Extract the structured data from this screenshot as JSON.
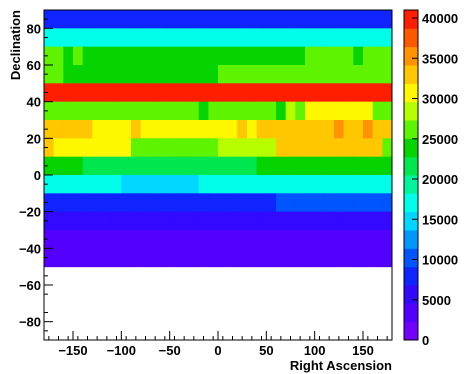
{
  "chart_data": {
    "type": "heatmap",
    "title": "",
    "xlabel": "Right Ascension",
    "ylabel": "Declination",
    "xlim": [
      -180,
      180
    ],
    "ylim": [
      -90,
      90
    ],
    "x_ticks": [
      -150,
      -100,
      -50,
      0,
      50,
      100,
      150
    ],
    "y_ticks": [
      -80,
      -60,
      -40,
      -20,
      0,
      20,
      40,
      60,
      80
    ],
    "z_range": [
      0,
      41000
    ],
    "colorbar_ticks": [
      0,
      5000,
      10000,
      15000,
      20000,
      25000,
      30000,
      35000,
      40000
    ],
    "grid": false,
    "bins_x": 36,
    "rows": [
      {
        "dec": [
          80,
          90
        ],
        "values": [
          9000,
          9000,
          9000,
          9000,
          9000,
          9000,
          9000,
          9000,
          9000,
          9000,
          9000,
          9000,
          9000,
          9000,
          9000,
          9000,
          9000,
          9000,
          9000,
          9000,
          9000,
          9000,
          9000,
          9000,
          9000,
          9000,
          9000,
          9000,
          9000,
          9000,
          9000,
          9000,
          9000,
          9000,
          9000,
          9000
        ]
      },
      {
        "dec": [
          70,
          80
        ],
        "values": [
          16000,
          16000,
          16000,
          16000,
          16000,
          16000,
          16000,
          16000,
          16000,
          16000,
          16000,
          16000,
          16000,
          16000,
          16000,
          16000,
          16000,
          16000,
          16000,
          16000,
          16000,
          16000,
          16000,
          16000,
          16000,
          16000,
          16000,
          16000,
          16000,
          16000,
          16000,
          16000,
          16000,
          16000,
          16000,
          16000
        ]
      },
      {
        "dec": [
          60,
          70
        ],
        "values": [
          25500,
          25500,
          23000,
          25500,
          23000,
          23000,
          23000,
          23000,
          23000,
          23000,
          23000,
          23000,
          23000,
          23000,
          23000,
          23000,
          23000,
          23000,
          23000,
          23000,
          23000,
          23000,
          23000,
          23000,
          23000,
          23000,
          23000,
          25500,
          25500,
          25500,
          25500,
          25500,
          23000,
          25500,
          25500,
          25500
        ]
      },
      {
        "dec": [
          50,
          60
        ],
        "values": [
          25500,
          25500,
          23000,
          23000,
          23000,
          23000,
          23000,
          23000,
          23000,
          23000,
          23000,
          23000,
          23000,
          23000,
          23000,
          23000,
          23000,
          23000,
          25500,
          25500,
          25500,
          25500,
          25500,
          25500,
          25500,
          25500,
          25500,
          25500,
          25500,
          25500,
          25500,
          25500,
          25500,
          25500,
          25500,
          25500
        ]
      },
      {
        "dec": [
          40,
          50
        ],
        "values": [
          39000,
          41000,
          41000,
          41000,
          41000,
          41000,
          41000,
          41000,
          41000,
          41000,
          41000,
          41000,
          41000,
          41000,
          41000,
          41000,
          41000,
          41000,
          41000,
          41000,
          41000,
          39500,
          39500,
          39500,
          39500,
          39500,
          39500,
          39500,
          39500,
          39500,
          39500,
          39500,
          39500,
          39500,
          39500,
          39500
        ]
      },
      {
        "dec": [
          30,
          40
        ],
        "values": [
          27000,
          27000,
          27000,
          27000,
          27000,
          27000,
          27000,
          27000,
          27000,
          27000,
          27000,
          27000,
          27000,
          27000,
          27000,
          27000,
          25000,
          27000,
          27000,
          27000,
          27000,
          27000,
          27000,
          27000,
          25000,
          29500,
          27000,
          30500,
          30500,
          30500,
          30500,
          30500,
          30500,
          30500,
          27000,
          27000
        ]
      },
      {
        "dec": [
          20,
          30
        ],
        "values": [
          33500,
          33500,
          33500,
          33500,
          33500,
          30500,
          30500,
          30500,
          30500,
          34000,
          30500,
          30500,
          30500,
          30500,
          30500,
          30500,
          30500,
          30500,
          30500,
          30500,
          34000,
          30500,
          33500,
          33500,
          33500,
          33500,
          33500,
          33500,
          33500,
          33500,
          35500,
          33500,
          33500,
          35500,
          33500,
          33500
        ]
      },
      {
        "dec": [
          10,
          20
        ],
        "values": [
          34000,
          30500,
          30500,
          30500,
          30500,
          30500,
          30500,
          30500,
          30500,
          27000,
          27000,
          27000,
          27000,
          27000,
          27000,
          27000,
          27000,
          27000,
          28000,
          28000,
          28000,
          28000,
          28000,
          28000,
          34000,
          34000,
          34000,
          34000,
          34000,
          34000,
          34000,
          34000,
          34000,
          34000,
          34000,
          27000
        ]
      },
      {
        "dec": [
          0,
          10
        ],
        "values": [
          23500,
          23500,
          23500,
          23500,
          21500,
          21500,
          21500,
          21500,
          21500,
          21500,
          21500,
          21500,
          21500,
          21500,
          21500,
          21500,
          21500,
          21500,
          21500,
          21500,
          21500,
          21500,
          23500,
          23500,
          23500,
          23500,
          23500,
          23500,
          23500,
          23500,
          23500,
          23500,
          23500,
          23500,
          23500,
          23500
        ]
      },
      {
        "dec": [
          -10,
          0
        ],
        "values": [
          18000,
          18000,
          18000,
          18000,
          18000,
          18000,
          18000,
          18000,
          15000,
          15000,
          15000,
          15000,
          15000,
          15000,
          15000,
          15000,
          18000,
          18000,
          18000,
          18000,
          18000,
          18000,
          18000,
          18000,
          18000,
          18000,
          18000,
          18000,
          18000,
          18000,
          18000,
          18000,
          18000,
          18000,
          18000,
          18000
        ]
      },
      {
        "dec": [
          -20,
          -10
        ],
        "values": [
          8200,
          8200,
          8200,
          8200,
          8200,
          8200,
          8200,
          8200,
          8200,
          8200,
          8200,
          8200,
          8200,
          8200,
          8200,
          8200,
          8200,
          8200,
          8200,
          8200,
          8200,
          8200,
          8200,
          8200,
          10500,
          10500,
          10500,
          10500,
          10500,
          10500,
          10500,
          10500,
          10500,
          10500,
          10500,
          10500
        ]
      },
      {
        "dec": [
          -30,
          -20
        ],
        "values": [
          6000,
          6000,
          6000,
          6000,
          6000,
          6000,
          6000,
          6000,
          6000,
          6000,
          6000,
          6000,
          6000,
          6000,
          6000,
          6000,
          6000,
          6000,
          6000,
          6000,
          6000,
          6000,
          6000,
          6000,
          6000,
          6000,
          6000,
          6000,
          6000,
          6000,
          6000,
          6000,
          6000,
          6000,
          6000,
          6000
        ]
      },
      {
        "dec": [
          -40,
          -30
        ],
        "values": [
          2500,
          2500,
          2500,
          2500,
          2500,
          2500,
          2500,
          2500,
          2500,
          2500,
          2500,
          2500,
          2500,
          2500,
          2500,
          2500,
          2500,
          2500,
          2500,
          2500,
          2500,
          2500,
          2500,
          2500,
          2500,
          2500,
          2500,
          2500,
          2500,
          2500,
          2500,
          2500,
          2500,
          2500,
          2500,
          2500
        ]
      },
      {
        "dec": [
          -50,
          -40
        ],
        "values": [
          2500,
          2500,
          2500,
          2500,
          2500,
          2500,
          2500,
          2500,
          2500,
          2500,
          2500,
          2500,
          2500,
          2500,
          2500,
          2500,
          2500,
          2500,
          2500,
          2500,
          2500,
          2500,
          2500,
          2500,
          2500,
          2500,
          2500,
          2500,
          2500,
          2500,
          2500,
          2500,
          2500,
          2500,
          2500,
          2500
        ]
      }
    ],
    "empty_region": {
      "dec": [
        -90,
        -50
      ]
    }
  }
}
